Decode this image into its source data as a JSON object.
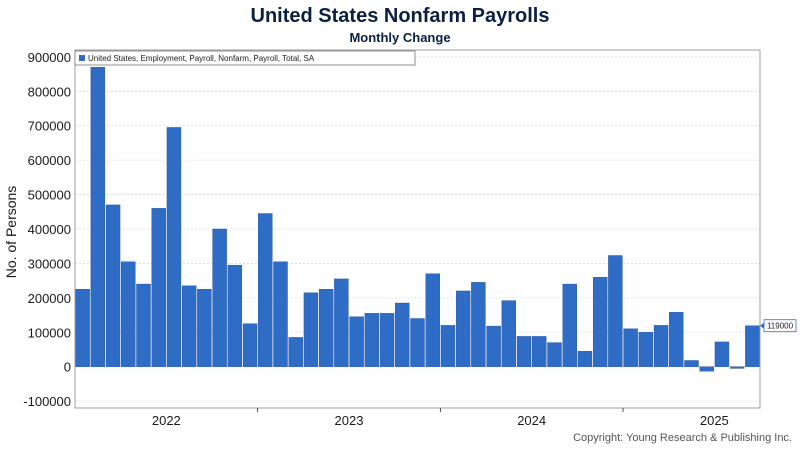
{
  "title": "United States Nonfarm Payrolls",
  "subtitle": "Monthly Change",
  "copyright": "Copyright: Young Research & Publishing Inc.",
  "colors": {
    "bar": "#2e6cc6",
    "bar_stroke": "#1f4f9a",
    "grid": "#d9d9d9",
    "axis": "#222222",
    "title": "#0b1f44"
  },
  "chart_data": {
    "type": "bar",
    "ylabel": "No. of Persons",
    "ylim": [
      -120000,
      920000
    ],
    "yticks": [
      -100000,
      0,
      100000,
      200000,
      300000,
      400000,
      500000,
      600000,
      700000,
      800000,
      900000
    ],
    "grid": true,
    "legend_position": "top-left",
    "year_labels": [
      {
        "label": "2022",
        "month_index": 6
      },
      {
        "label": "2023",
        "month_index": 18
      },
      {
        "label": "2024",
        "month_index": 30
      },
      {
        "label": "2025",
        "month_index": 42
      }
    ],
    "end_label": "119000",
    "series": [
      {
        "name": "United States, Employment, Payroll, Nonfarm, Payroll, Total, SA",
        "values": [
          225000,
          870000,
          470000,
          305000,
          240000,
          460000,
          695000,
          235000,
          225000,
          400000,
          295000,
          125000,
          445000,
          305000,
          85000,
          215000,
          225000,
          255000,
          145000,
          155000,
          155000,
          185000,
          140000,
          270000,
          120000,
          220000,
          245000,
          118000,
          192000,
          88000,
          88000,
          70000,
          240000,
          45000,
          260000,
          323000,
          110000,
          100000,
          120000,
          158000,
          18000,
          -13000,
          72000,
          -5000,
          119000
        ]
      }
    ]
  }
}
